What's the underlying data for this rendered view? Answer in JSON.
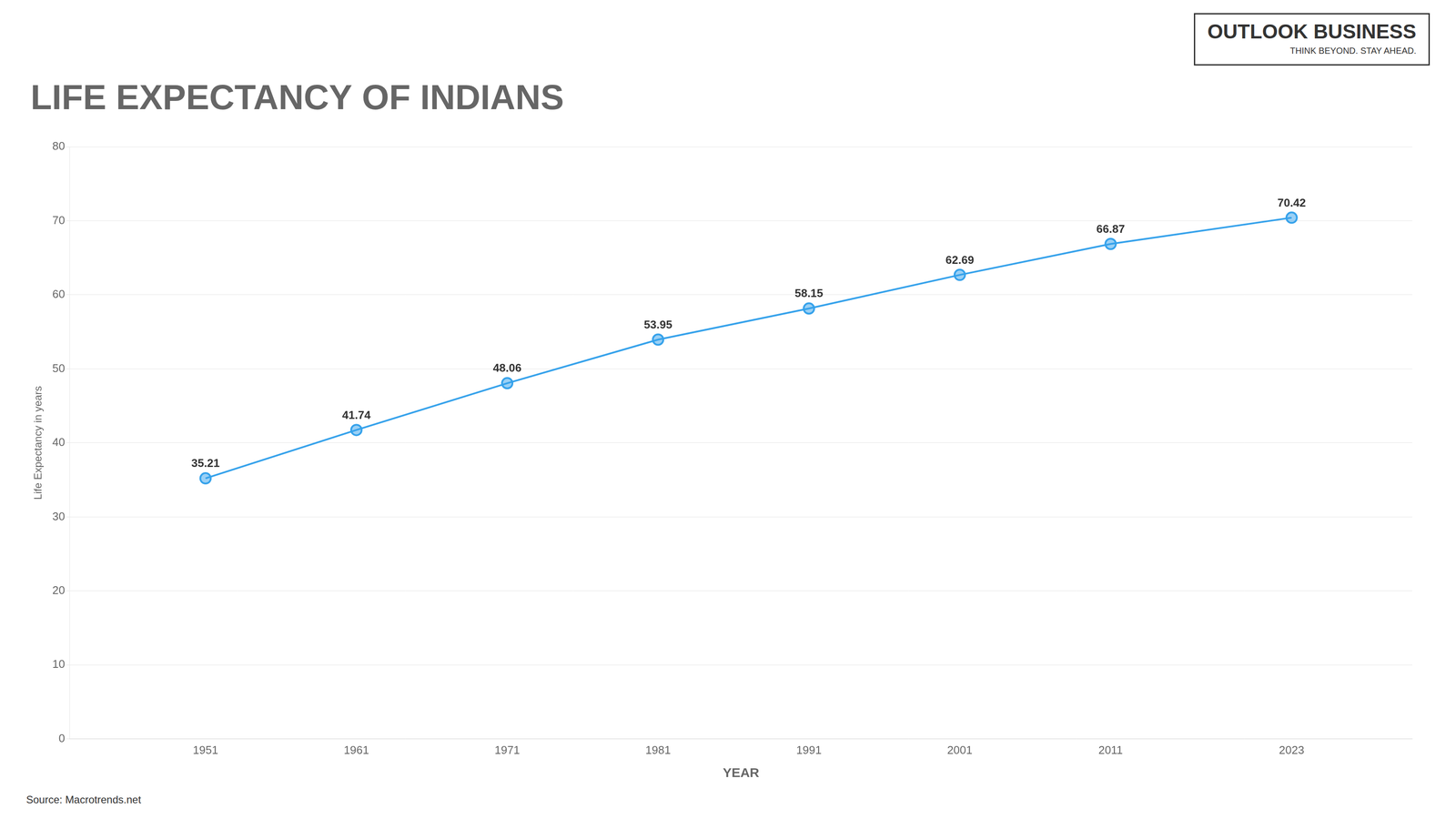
{
  "chart_data": {
    "type": "line",
    "title": "LIFE EXPECTANCY OF INDIANS",
    "xlabel": "YEAR",
    "ylabel": "Life Expectancy in years",
    "annotations": [
      "OUTLOOK BUSINESS",
      "THINK BEYOND. STAY AHEAD.",
      "Source: Macrotrends.net"
    ],
    "x": [
      1951,
      1961,
      1971,
      1981,
      1991,
      2001,
      2011,
      2023
    ],
    "values": [
      35.21,
      41.74,
      48.06,
      53.95,
      58.15,
      62.69,
      66.87,
      70.42
    ],
    "xlim": [
      1942,
      2031
    ],
    "xticks": [
      1951,
      1961,
      1971,
      1981,
      1991,
      2001,
      2011,
      2023
    ],
    "ylim": [
      0,
      80
    ],
    "yticks": [
      0,
      10,
      20,
      30,
      40,
      50,
      60,
      70,
      80
    ],
    "grid": "y",
    "marker": "circle",
    "data_labels": true
  }
}
